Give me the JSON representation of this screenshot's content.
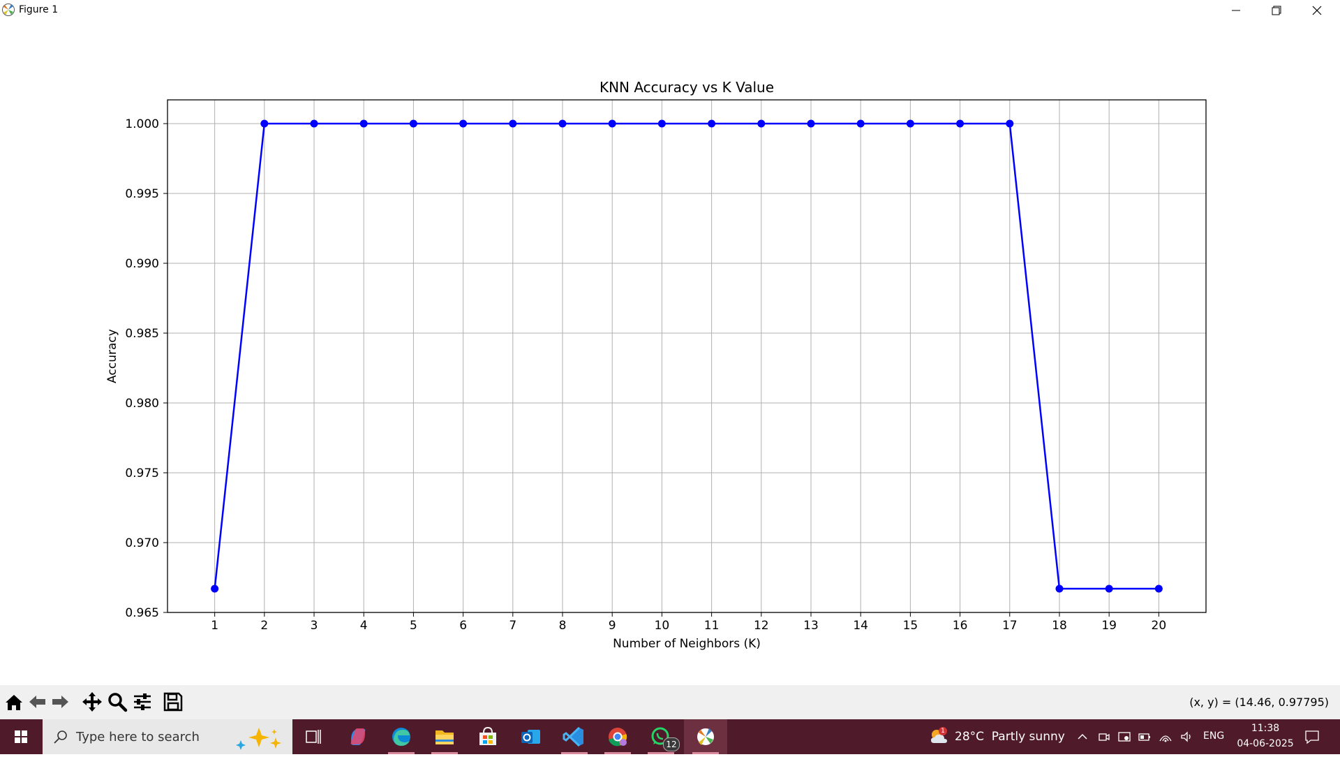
{
  "window": {
    "title": "Figure 1",
    "icons": {
      "app": "matplotlib-icon",
      "minimize": "minimize-icon",
      "maximize": "restore-icon",
      "close": "close-icon"
    }
  },
  "chart_data": {
    "type": "line",
    "title": "KNN Accuracy vs K Value",
    "xlabel": "Number of Neighbors (K)",
    "ylabel": "Accuracy",
    "x": [
      1,
      2,
      3,
      4,
      5,
      6,
      7,
      8,
      9,
      10,
      11,
      12,
      13,
      14,
      15,
      16,
      17,
      18,
      19,
      20
    ],
    "series": [
      {
        "values": [
          0.9667,
          1.0,
          1.0,
          1.0,
          1.0,
          1.0,
          1.0,
          1.0,
          1.0,
          1.0,
          1.0,
          1.0,
          1.0,
          1.0,
          1.0,
          1.0,
          1.0,
          0.9667,
          0.9667,
          0.9667
        ],
        "color": "#0000ff",
        "marker": "circle"
      }
    ],
    "xlim": [
      0.05,
      20.95
    ],
    "ylim": [
      0.965,
      1.0017
    ],
    "xticks": [
      "1",
      "2",
      "3",
      "4",
      "5",
      "6",
      "7",
      "8",
      "9",
      "10",
      "11",
      "12",
      "13",
      "14",
      "15",
      "16",
      "17",
      "18",
      "19",
      "20"
    ],
    "yticks": [
      "0.965",
      "0.970",
      "0.975",
      "0.980",
      "0.985",
      "0.990",
      "0.995",
      "1.000"
    ],
    "ytick_values": [
      0.965,
      0.97,
      0.975,
      0.98,
      0.985,
      0.99,
      0.995,
      1.0
    ],
    "grid": true,
    "legend": false
  },
  "toolbar": {
    "icons": [
      "home-icon",
      "back-arrow-icon",
      "forward-arrow-icon",
      "pan-icon",
      "zoom-icon",
      "configure-subplots-icon",
      "save-icon"
    ],
    "coords": "(x, y) = (14.46, 0.97795)"
  },
  "taskbar": {
    "search_placeholder": "Type here to search",
    "apps": [
      "task-view-icon",
      "copilot-icon",
      "edge-icon",
      "file-explorer-icon",
      "microsoft-store-icon",
      "outlook-icon",
      "vscode-icon",
      "chrome-icon",
      "whatsapp-icon",
      "matplotlib-icon"
    ],
    "whatsapp_badge": "12",
    "weather_badge": "1",
    "weather": "28°C  Partly sunny",
    "language": "ENG",
    "time": "11:38",
    "date": "04-06-2025"
  }
}
